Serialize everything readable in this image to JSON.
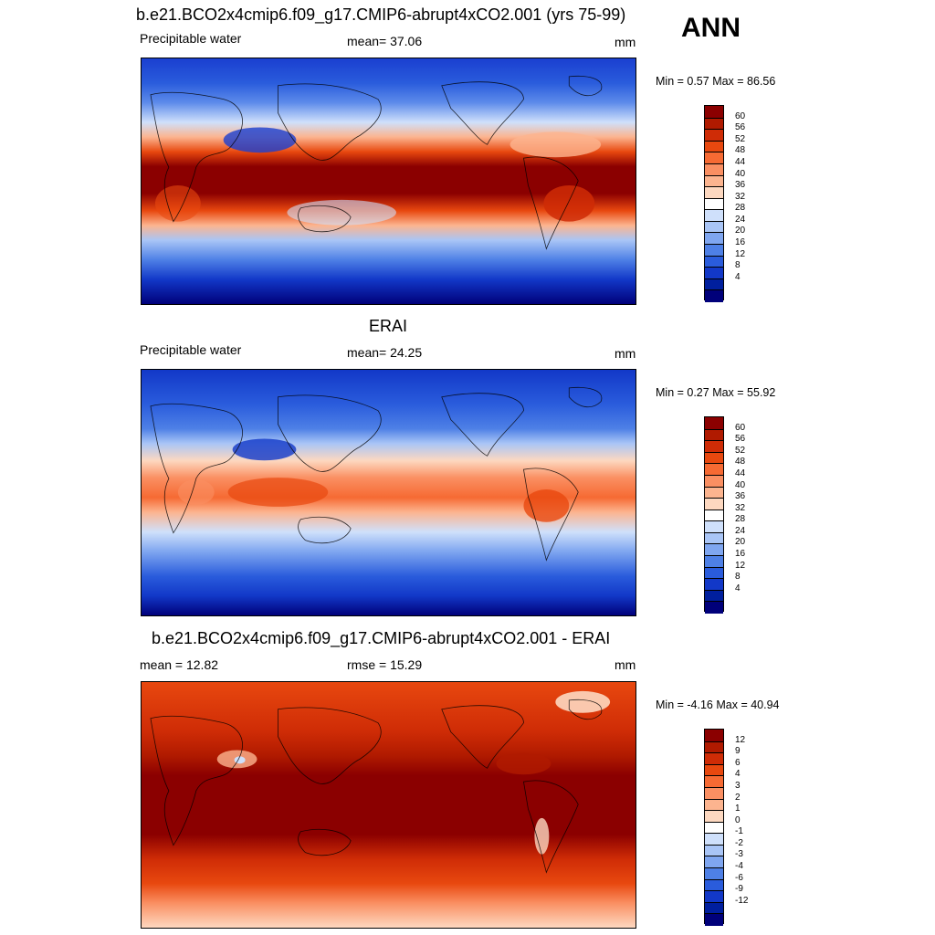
{
  "season": "ANN",
  "panels": [
    {
      "title": "b.e21.BCO2x4cmip6.f09_g17.CMIP6-abrupt4xCO2.001 (yrs 75-99)",
      "left_label": "Precipitable water",
      "center_label": "mean=  37.06",
      "units": "mm",
      "minmax": "Min =   0.57 Max =  86.56",
      "map_kind": "model",
      "colorbar_labels": [
        "60",
        "56",
        "52",
        "48",
        "44",
        "40",
        "36",
        "32",
        "28",
        "24",
        "20",
        "16",
        "12",
        "8",
        "4"
      ]
    },
    {
      "title": "ERAI",
      "left_label": "Precipitable water",
      "center_label": "mean=  24.25",
      "units": "mm",
      "minmax": "Min =   0.27 Max =  55.92",
      "map_kind": "obs",
      "colorbar_labels": [
        "60",
        "56",
        "52",
        "48",
        "44",
        "40",
        "36",
        "32",
        "28",
        "24",
        "20",
        "16",
        "12",
        "8",
        "4"
      ]
    },
    {
      "title": "b.e21.BCO2x4cmip6.f09_g17.CMIP6-abrupt4xCO2.001 - ERAI",
      "left_label": "mean =  12.82",
      "center_label": "rmse =  15.29",
      "units": "mm",
      "minmax": "Min =  -4.16 Max =  40.94",
      "map_kind": "diff",
      "colorbar_labels": [
        "12",
        "9",
        "6",
        "4",
        "3",
        "2",
        "1",
        "0",
        "-1",
        "-2",
        "-3",
        "-4",
        "-6",
        "-9",
        "-12"
      ]
    }
  ],
  "colors": {
    "abs_scale": [
      "#8b0000",
      "#b01a00",
      "#cf2c06",
      "#e8480f",
      "#f66a33",
      "#fa8f62",
      "#fcb48f",
      "#fdd8c0",
      "#ffffff",
      "#cfe0fb",
      "#a9c5f6",
      "#7fa6f0",
      "#4e80e6",
      "#2a5cdc",
      "#1238c8",
      "#001f9e",
      "#00007a"
    ],
    "diff_scale": [
      "#8b0000",
      "#b01a00",
      "#cf2c06",
      "#e8480f",
      "#f66a33",
      "#fa8f62",
      "#fcb48f",
      "#fdd8c0",
      "#ffffff",
      "#cfe0fb",
      "#a9c5f6",
      "#7fa6f0",
      "#4e80e6",
      "#2a5cdc",
      "#1238c8",
      "#001f9e",
      "#00007a"
    ]
  }
}
